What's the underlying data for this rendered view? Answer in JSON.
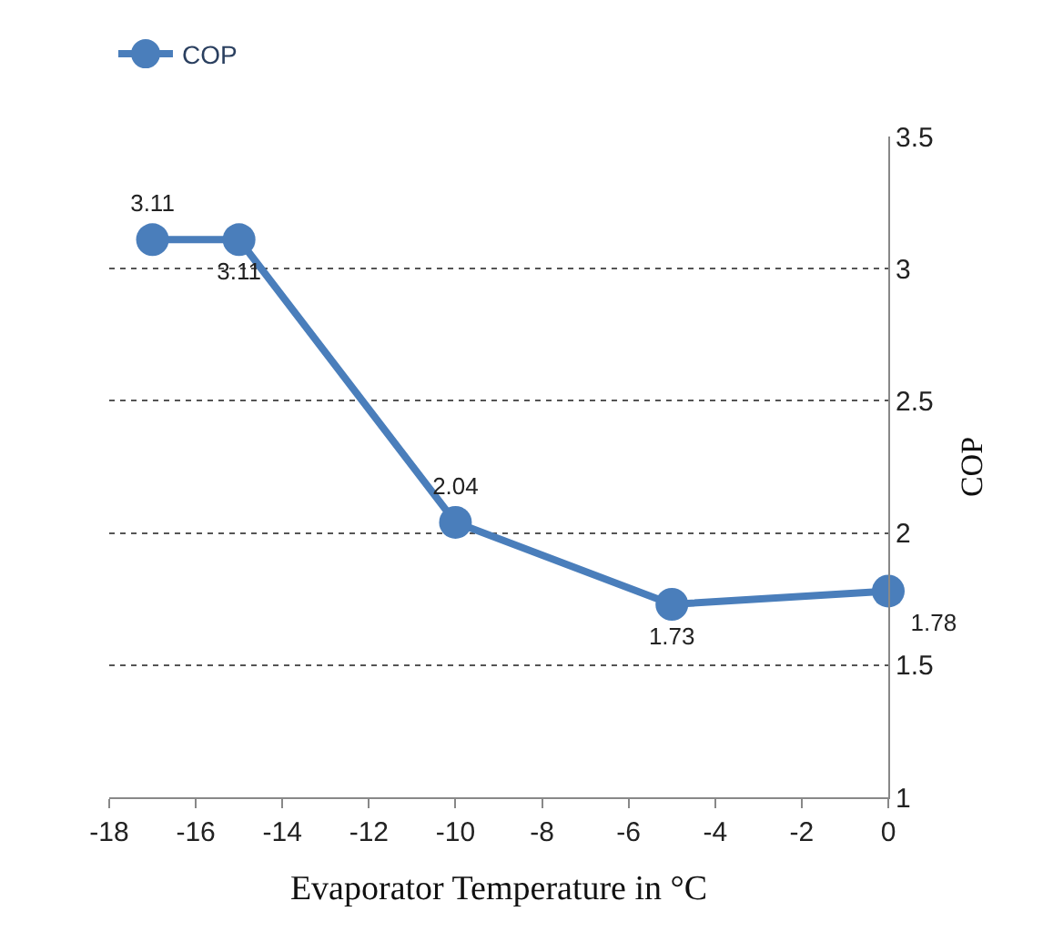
{
  "chart_data": {
    "type": "line",
    "xlabel": "Evaporator Temperature in °C",
    "ylabel": "COP",
    "x": [
      -17,
      -15,
      -10,
      -5,
      0
    ],
    "series": [
      {
        "name": "COP",
        "color": "#4a7ebb",
        "values": [
          3.11,
          3.11,
          2.04,
          1.73,
          1.78
        ]
      }
    ],
    "xlim": [
      -18,
      0
    ],
    "xticks": [
      -18,
      -16,
      -14,
      -12,
      -10,
      -8,
      -6,
      -4,
      -2,
      0
    ],
    "ylim": [
      1,
      3.5
    ],
    "yticks": [
      1,
      1.5,
      2,
      2.5,
      3,
      3.5
    ],
    "grid": "y",
    "legend": "top left",
    "marker": "circle",
    "line_style": "solid",
    "data_labels": true
  }
}
